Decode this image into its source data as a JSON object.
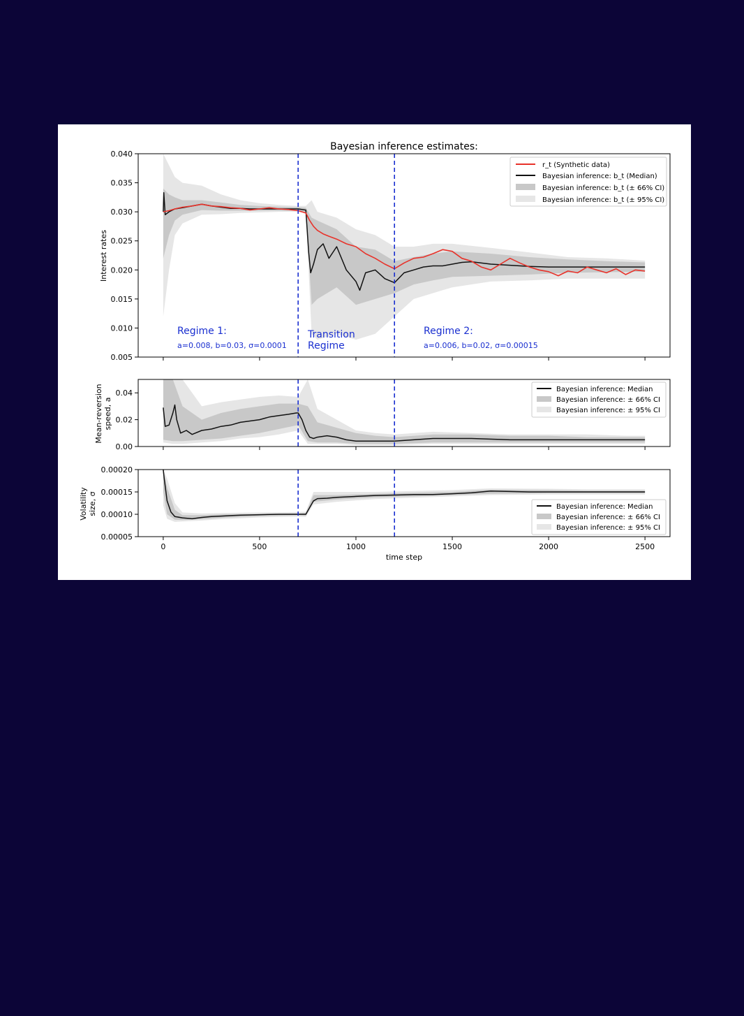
{
  "chart_data": [
    {
      "type": "line",
      "title": "Bayesian inference estimates:",
      "xlabel": "",
      "ylabel": "Interest rates",
      "xlim": [
        -130,
        2630
      ],
      "ylim": [
        0.005,
        0.04
      ],
      "xticks": [
        0,
        500,
        1000,
        1500,
        2000,
        2500
      ],
      "yticks": [
        "0.005",
        "0.010",
        "0.015",
        "0.020",
        "0.025",
        "0.030",
        "0.035",
        "0.040"
      ],
      "vlines": [
        700,
        1200
      ],
      "legend_position": "top-right",
      "legend": [
        "r_t (Synthetic data)",
        "Bayesian inference: b_t (Median)",
        "Bayesian inference: b_t (± 66% CI)",
        "Bayesian inference: b_t (± 95% CI)"
      ],
      "annotations": {
        "regime1_title": "Regime 1:",
        "regime1_params": "a=0.008, b=0.03, σ=0.0001",
        "transition_line1": "Transition",
        "transition_line2": "Regime",
        "regime2_title": "Regime 2:",
        "regime2_params": "a=0.006, b=0.02, σ=0.00015"
      },
      "series": [
        {
          "name": "r_t (Synthetic data)",
          "color": "#e8322a",
          "x": [
            0,
            30,
            60,
            100,
            150,
            200,
            250,
            300,
            350,
            400,
            450,
            500,
            550,
            600,
            650,
            700,
            740,
            760,
            780,
            800,
            830,
            860,
            900,
            950,
            1000,
            1050,
            1100,
            1150,
            1200,
            1250,
            1300,
            1350,
            1400,
            1450,
            1500,
            1550,
            1600,
            1650,
            1700,
            1750,
            1800,
            1850,
            1900,
            1950,
            2000,
            2050,
            2100,
            2150,
            2200,
            2250,
            2300,
            2350,
            2400,
            2450,
            2500
          ],
          "y": [
            0.03,
            0.0302,
            0.0305,
            0.0308,
            0.031,
            0.0313,
            0.031,
            0.0309,
            0.0307,
            0.0306,
            0.0303,
            0.0305,
            0.0307,
            0.0305,
            0.0304,
            0.0302,
            0.0298,
            0.0285,
            0.0275,
            0.0268,
            0.0262,
            0.0258,
            0.0253,
            0.0245,
            0.024,
            0.0228,
            0.022,
            0.021,
            0.0202,
            0.0212,
            0.022,
            0.0222,
            0.0228,
            0.0235,
            0.0232,
            0.022,
            0.0215,
            0.0205,
            0.02,
            0.021,
            0.022,
            0.0212,
            0.0205,
            0.02,
            0.0197,
            0.019,
            0.0198,
            0.0195,
            0.0205,
            0.02,
            0.0195,
            0.0202,
            0.0192,
            0.02,
            0.0198
          ]
        },
        {
          "name": "Bayesian inference: b_t (Median)",
          "color": "#111111",
          "x": [
            0,
            3,
            10,
            30,
            60,
            100,
            150,
            200,
            250,
            300,
            350,
            400,
            450,
            500,
            550,
            600,
            650,
            700,
            740,
            755,
            765,
            780,
            800,
            830,
            860,
            900,
            950,
            1000,
            1020,
            1050,
            1100,
            1150,
            1200,
            1250,
            1300,
            1350,
            1400,
            1450,
            1500,
            1550,
            1600,
            1700,
            1800,
            1900,
            2000,
            2100,
            2200,
            2300,
            2400,
            2500
          ],
          "y": [
            0.03,
            0.0333,
            0.0295,
            0.03,
            0.0305,
            0.0307,
            0.031,
            0.0313,
            0.031,
            0.0308,
            0.0306,
            0.0306,
            0.0305,
            0.0305,
            0.0305,
            0.0305,
            0.0305,
            0.0305,
            0.0303,
            0.023,
            0.0195,
            0.021,
            0.0235,
            0.0245,
            0.022,
            0.024,
            0.02,
            0.018,
            0.0165,
            0.0195,
            0.02,
            0.0185,
            0.0178,
            0.0195,
            0.02,
            0.0205,
            0.0207,
            0.0207,
            0.021,
            0.0213,
            0.0214,
            0.021,
            0.0208,
            0.0206,
            0.0205,
            0.0205,
            0.0205,
            0.0205,
            0.0205,
            0.0205
          ]
        },
        {
          "name": "Bayesian inference: b_t (± 66% CI)",
          "color": "#c8c8c8",
          "x": [
            0,
            30,
            60,
            100,
            200,
            300,
            400,
            500,
            600,
            700,
            740,
            770,
            800,
            900,
            1000,
            1100,
            1200,
            1300,
            1400,
            1500,
            1700,
            1900,
            2100,
            2300,
            2500
          ],
          "lower": [
            0.022,
            0.026,
            0.0285,
            0.0295,
            0.0303,
            0.0302,
            0.0302,
            0.0302,
            0.0302,
            0.0302,
            0.03,
            0.014,
            0.015,
            0.017,
            0.014,
            0.015,
            0.016,
            0.0175,
            0.0182,
            0.0188,
            0.019,
            0.0192,
            0.0195,
            0.0196,
            0.0197
          ],
          "upper": [
            0.034,
            0.033,
            0.0325,
            0.032,
            0.032,
            0.0316,
            0.0312,
            0.031,
            0.0309,
            0.0308,
            0.0307,
            0.029,
            0.0285,
            0.027,
            0.024,
            0.0235,
            0.0215,
            0.0222,
            0.0228,
            0.0232,
            0.0228,
            0.0222,
            0.0218,
            0.0215,
            0.0213
          ]
        },
        {
          "name": "Bayesian inference: b_t (± 95% CI)",
          "color": "#e6e6e6",
          "x": [
            0,
            30,
            60,
            100,
            200,
            300,
            400,
            500,
            600,
            700,
            740,
            770,
            800,
            900,
            1000,
            1100,
            1200,
            1300,
            1400,
            1500,
            1700,
            1900,
            2100,
            2300,
            2500
          ],
          "lower": [
            0.012,
            0.02,
            0.026,
            0.028,
            0.0295,
            0.0296,
            0.0298,
            0.0299,
            0.03,
            0.03,
            0.0298,
            0.009,
            0.008,
            0.009,
            0.008,
            0.009,
            0.012,
            0.015,
            0.016,
            0.017,
            0.018,
            0.0182,
            0.0185,
            0.0185,
            0.0185
          ],
          "upper": [
            0.04,
            0.038,
            0.036,
            0.035,
            0.0345,
            0.033,
            0.032,
            0.0315,
            0.0312,
            0.031,
            0.031,
            0.032,
            0.03,
            0.029,
            0.027,
            0.026,
            0.024,
            0.024,
            0.0245,
            0.0245,
            0.0238,
            0.023,
            0.0222,
            0.022,
            0.0216
          ]
        }
      ]
    },
    {
      "type": "line",
      "title": "",
      "xlabel": "",
      "ylabel": [
        "Mean-reversion",
        "speed, a"
      ],
      "xlim": [
        -130,
        2630
      ],
      "ylim": [
        0.0,
        0.05
      ],
      "yticks": [
        "0.00",
        "0.02",
        "0.04"
      ],
      "vlines": [
        700,
        1200
      ],
      "legend_position": "top-right",
      "legend": [
        "Bayesian inference: Median",
        "Bayesian inference: ± 66% CI",
        "Bayesian inference: ± 95% CI"
      ],
      "series": [
        {
          "name": "Bayesian inference: Median",
          "color": "#111111",
          "x": [
            0,
            10,
            30,
            50,
            60,
            70,
            90,
            120,
            150,
            200,
            250,
            300,
            350,
            400,
            450,
            500,
            550,
            600,
            650,
            690,
            700,
            720,
            740,
            760,
            780,
            800,
            850,
            900,
            950,
            1000,
            1050,
            1100,
            1200,
            1300,
            1400,
            1500,
            1600,
            1800,
            2000,
            2200,
            2400,
            2500
          ],
          "y": [
            0.029,
            0.015,
            0.016,
            0.025,
            0.031,
            0.02,
            0.01,
            0.012,
            0.009,
            0.012,
            0.013,
            0.015,
            0.016,
            0.018,
            0.019,
            0.02,
            0.022,
            0.023,
            0.024,
            0.025,
            0.025,
            0.02,
            0.012,
            0.007,
            0.006,
            0.007,
            0.008,
            0.007,
            0.005,
            0.004,
            0.004,
            0.004,
            0.004,
            0.005,
            0.006,
            0.006,
            0.006,
            0.005,
            0.005,
            0.005,
            0.005,
            0.005
          ]
        },
        {
          "name": "Bayesian inference: ± 66% CI",
          "color": "#c8c8c8",
          "x": [
            0,
            50,
            100,
            200,
            300,
            400,
            500,
            600,
            700,
            750,
            800,
            900,
            1000,
            1100,
            1200,
            1400,
            1600,
            1800,
            2000,
            2200,
            2400,
            2500
          ],
          "lower": [
            0.005,
            0.004,
            0.004,
            0.005,
            0.006,
            0.008,
            0.01,
            0.013,
            0.016,
            0.004,
            0.003,
            0.003,
            0.002,
            0.002,
            0.002,
            0.003,
            0.003,
            0.003,
            0.003,
            0.003,
            0.003,
            0.003
          ],
          "upper": [
            0.05,
            0.05,
            0.03,
            0.02,
            0.025,
            0.028,
            0.03,
            0.032,
            0.032,
            0.03,
            0.018,
            0.014,
            0.01,
            0.008,
            0.007,
            0.009,
            0.009,
            0.008,
            0.008,
            0.007,
            0.007,
            0.007
          ]
        },
        {
          "name": "Bayesian inference: ± 95% CI",
          "color": "#e6e6e6",
          "x": [
            0,
            50,
            100,
            200,
            300,
            400,
            500,
            600,
            700,
            750,
            800,
            900,
            1000,
            1100,
            1200,
            1400,
            1600,
            1800,
            2000,
            2200,
            2400,
            2500
          ],
          "lower": [
            0.003,
            0.002,
            0.002,
            0.003,
            0.004,
            0.006,
            0.007,
            0.009,
            0.012,
            0.002,
            0.002,
            0.002,
            0.001,
            0.001,
            0.001,
            0.002,
            0.002,
            0.002,
            0.002,
            0.002,
            0.002,
            0.002
          ],
          "upper": [
            0.05,
            0.05,
            0.05,
            0.03,
            0.033,
            0.035,
            0.037,
            0.038,
            0.037,
            0.05,
            0.028,
            0.02,
            0.012,
            0.01,
            0.009,
            0.011,
            0.01,
            0.009,
            0.009,
            0.009,
            0.008,
            0.008
          ]
        }
      ]
    },
    {
      "type": "line",
      "title": "",
      "xlabel": "time step",
      "ylabel": [
        "Volatility",
        "size, σ"
      ],
      "xlim": [
        -130,
        2630
      ],
      "ylim": [
        5e-05,
        0.0002
      ],
      "xticks": [
        0,
        500,
        1000,
        1500,
        2000,
        2500
      ],
      "yticks": [
        "0.00005",
        "0.00010",
        "0.00015",
        "0.00020"
      ],
      "vlines": [
        700,
        1200
      ],
      "legend_position": "bottom-right",
      "legend": [
        "Bayesian inference: Median",
        "Bayesian inference: ± 66% CI",
        "Bayesian inference: ± 95% CI"
      ],
      "series": [
        {
          "name": "Bayesian inference: Median",
          "color": "#111111",
          "x": [
            0,
            5,
            20,
            40,
            60,
            100,
            150,
            200,
            250,
            300,
            350,
            400,
            500,
            600,
            700,
            740,
            760,
            780,
            800,
            850,
            900,
            1000,
            1100,
            1200,
            1300,
            1400,
            1500,
            1600,
            1700,
            1800,
            1900,
            2000,
            2100,
            2200,
            2300,
            2400,
            2500
          ],
          "y": [
            0.0002,
            0.00018,
            0.00013,
            0.000105,
            9.5e-05,
            9.2e-05,
            9e-05,
            9.3e-05,
            9.5e-05,
            9.6e-05,
            9.7e-05,
            9.8e-05,
            9.9e-05,
            0.0001,
            0.0001,
            0.0001,
            0.000115,
            0.00013,
            0.000135,
            0.000136,
            0.000138,
            0.00014,
            0.000142,
            0.000143,
            0.000144,
            0.000144,
            0.000146,
            0.000148,
            0.000152,
            0.000151,
            0.00015,
            0.00015,
            0.00015,
            0.00015,
            0.00015,
            0.00015,
            0.00015
          ]
        },
        {
          "name": "Bayesian inference: ± 66% CI",
          "color": "#c8c8c8",
          "x": [
            0,
            20,
            60,
            100,
            200,
            300,
            500,
            700,
            740,
            780,
            900,
            1100,
            1300,
            1500,
            1700,
            2000,
            2200,
            2500
          ],
          "lower": [
            0.00015,
            0.0001,
            8.8e-05,
            8.7e-05,
            8.9e-05,
            9.2e-05,
            9.6e-05,
            9.8e-05,
            9.7e-05,
            0.000128,
            0.000133,
            0.000138,
            0.00014,
            0.000143,
            0.000146,
            0.000147,
            0.000147,
            0.000147
          ],
          "upper": [
            0.0002,
            0.00016,
            0.00011,
            9.8e-05,
            9.8e-05,
            0.0001,
            0.000101,
            0.000102,
            0.000103,
            0.000143,
            0.000143,
            0.000146,
            0.000148,
            0.00015,
            0.000155,
            0.000154,
            0.000153,
            0.000153
          ]
        },
        {
          "name": "Bayesian inference: ± 95% CI",
          "color": "#e6e6e6",
          "x": [
            0,
            20,
            60,
            100,
            200,
            300,
            500,
            700,
            740,
            780,
            900,
            1100,
            1300,
            1500,
            1700,
            2000,
            2200,
            2500
          ],
          "lower": [
            0.00012,
            9e-05,
            8.3e-05,
            8.4e-05,
            8.6e-05,
            8.9e-05,
            9.3e-05,
            9.5e-05,
            9.4e-05,
            0.000122,
            0.000128,
            0.000134,
            0.000137,
            0.00014,
            0.000143,
            0.000144,
            0.000144,
            0.000144
          ],
          "upper": [
            0.0002,
            0.00018,
            0.000125,
            0.000104,
            0.000102,
            0.000103,
            0.000104,
            0.000105,
            0.000106,
            0.00015,
            0.00015,
            0.00015,
            0.000152,
            0.000154,
            0.000158,
            0.000157,
            0.000156,
            0.000156
          ]
        }
      ]
    }
  ]
}
